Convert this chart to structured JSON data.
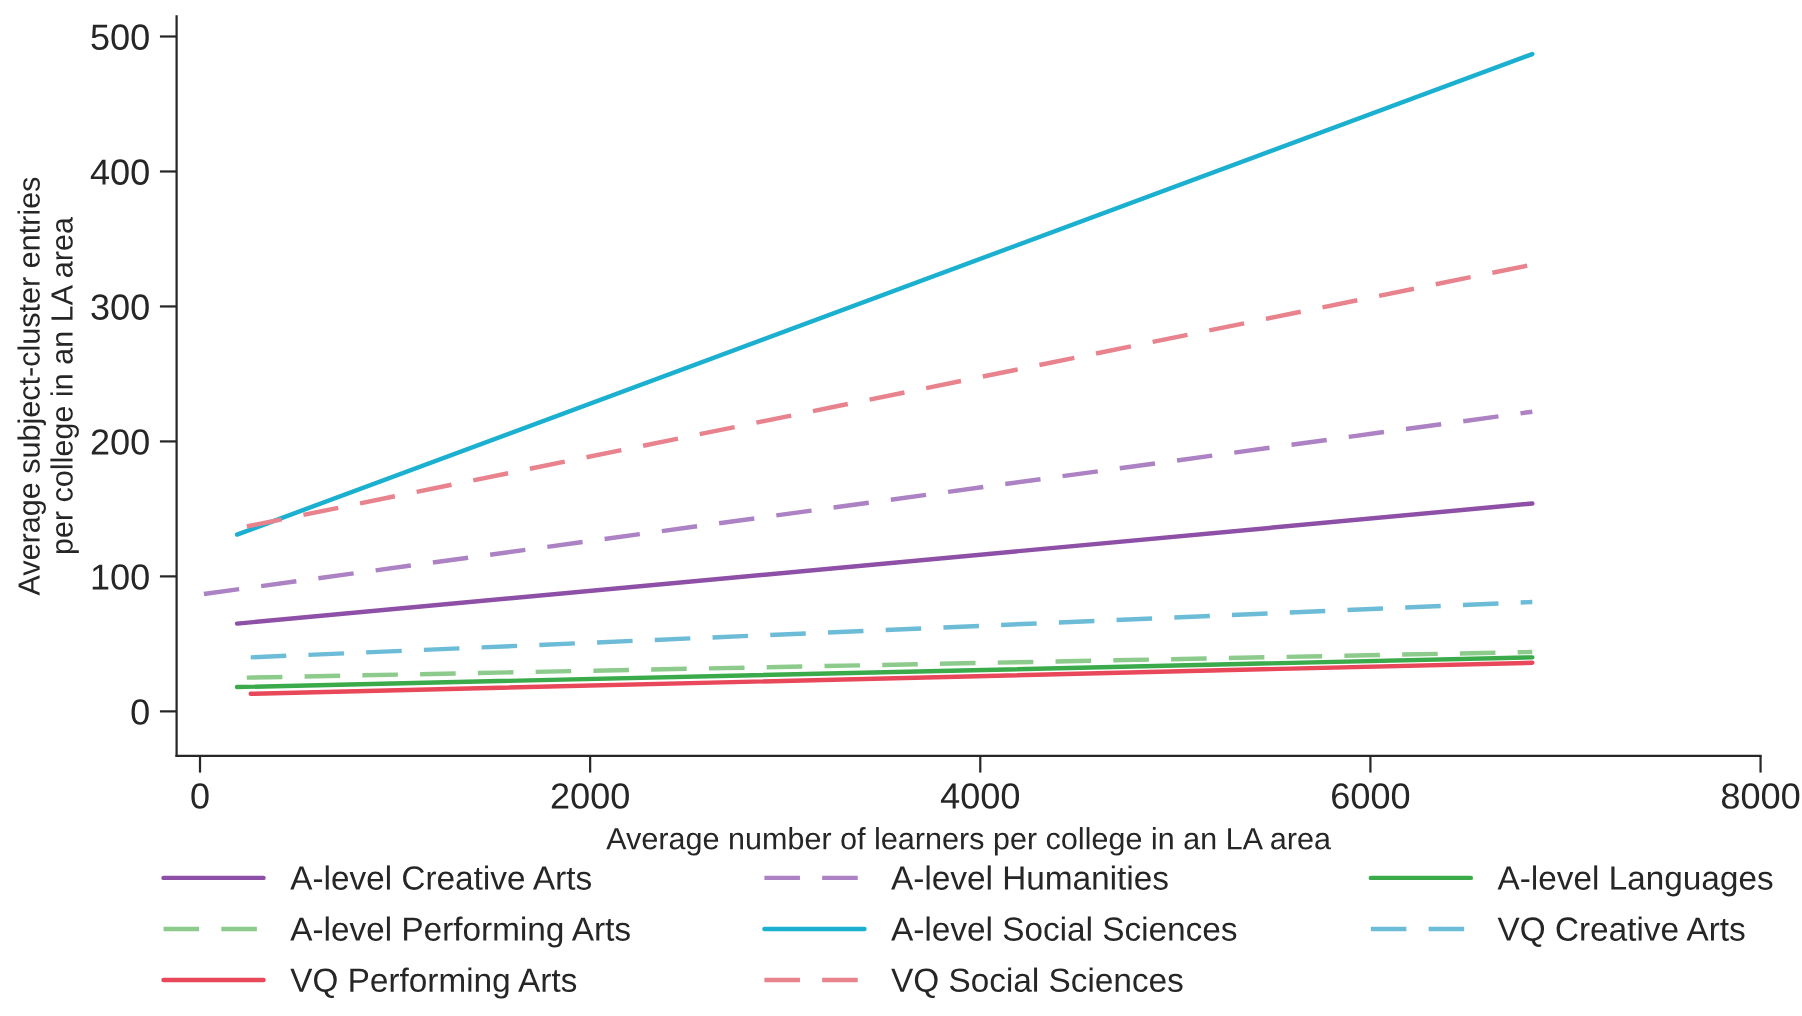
{
  "chart_data": {
    "type": "line",
    "xlabel": "Average number of learners per college in an LA area",
    "ylabel": "Average subject-cluster entries\nper college in an LA area",
    "xlim": [
      -120,
      8000
    ],
    "ylim": [
      -33,
      515
    ],
    "xticks": [
      0,
      2000,
      4000,
      6000,
      8000
    ],
    "yticks": [
      0,
      100,
      200,
      300,
      400,
      500
    ],
    "grid": false,
    "legend": "bottom",
    "marker": "none",
    "series": [
      {
        "name": "A-level Creative Arts",
        "color": "#8e4fa6",
        "line_style": "solid",
        "x": [
          190,
          6830
        ],
        "values": [
          65,
          154
        ]
      },
      {
        "name": "A-level Humanities",
        "color": "#ac82c4",
        "line_style": "dashed",
        "x": [
          20,
          6830
        ],
        "values": [
          87,
          222
        ]
      },
      {
        "name": "A-level Languages",
        "color": "#3aaa4a",
        "line_style": "solid",
        "x": [
          190,
          6830
        ],
        "values": [
          18,
          40
        ]
      },
      {
        "name": "A-level Performing Arts",
        "color": "#8ccb8c",
        "line_style": "dashed",
        "x": [
          240,
          6830
        ],
        "values": [
          25,
          44
        ]
      },
      {
        "name": "A-level Social Sciences",
        "color": "#1bb0d0",
        "line_style": "solid",
        "x": [
          190,
          6830
        ],
        "values": [
          131,
          487
        ]
      },
      {
        "name": "VQ Creative Arts",
        "color": "#6cbcd8",
        "line_style": "dashed",
        "x": [
          260,
          6830
        ],
        "values": [
          40,
          81
        ]
      },
      {
        "name": "VQ Performing Arts",
        "color": "#e8485a",
        "line_style": "solid",
        "x": [
          260,
          6830
        ],
        "values": [
          13,
          36
        ]
      },
      {
        "name": "VQ Social Sciences",
        "color": "#e8828c",
        "line_style": "dashed",
        "x": [
          240,
          6830
        ],
        "values": [
          137,
          331
        ]
      }
    ]
  }
}
